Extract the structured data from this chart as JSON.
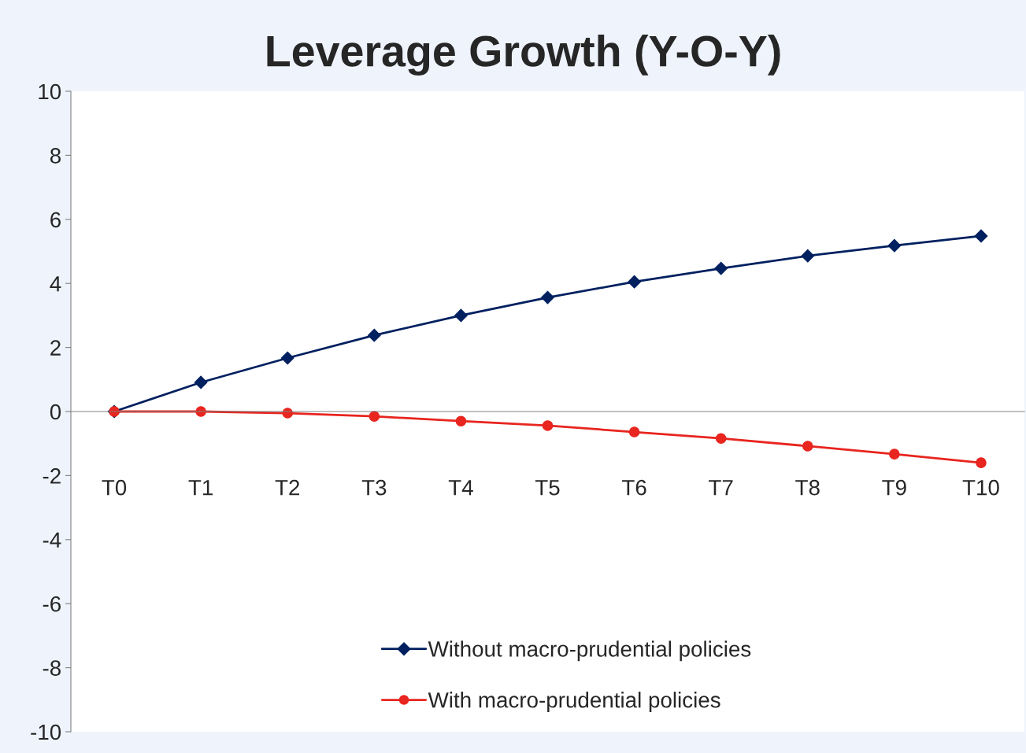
{
  "chart_data": {
    "type": "line",
    "title": "Leverage Growth (Y-O-Y)",
    "categories": [
      "T0",
      "T1",
      "T2",
      "T3",
      "T4",
      "T5",
      "T6",
      "T7",
      "T8",
      "T9",
      "T10"
    ],
    "series": [
      {
        "name": "Without macro-prudential policies",
        "color": "#002060",
        "marker": "diamond",
        "values": [
          0,
          0.91,
          1.67,
          2.38,
          3.0,
          3.56,
          4.05,
          4.47,
          4.86,
          5.18,
          5.48
        ]
      },
      {
        "name": "With macro-prudential policies",
        "color": "#e8251f",
        "marker": "circle",
        "values": [
          0,
          0,
          -0.05,
          -0.15,
          -0.3,
          -0.44,
          -0.64,
          -0.84,
          -1.08,
          -1.33,
          -1.6
        ]
      }
    ],
    "ylim": [
      -10,
      10
    ],
    "yticks": [
      -10,
      -8,
      -6,
      -4,
      -2,
      0,
      2,
      4,
      6,
      8,
      10
    ],
    "legend": "bottom"
  }
}
